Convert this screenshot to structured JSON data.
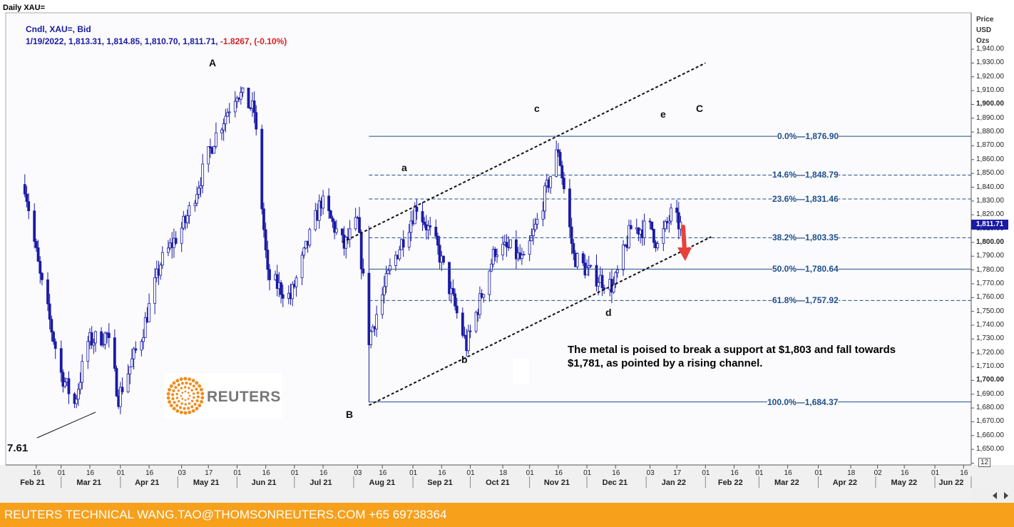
{
  "window": {
    "title": "Daily XAU="
  },
  "legend": {
    "line1": "Cndl, XAU=, Bid",
    "line2_main": "1/19/2022, 1,813.31, 1,814.85, 1,810.70, 1,811.71, ",
    "line2_change": "-1.8267, (-0.10%)"
  },
  "price_axis": {
    "header": [
      "Price",
      "USD",
      "Ozs"
    ],
    "current_price": "1,811.71",
    "corner_value": "12"
  },
  "left_edge_value": "7.61",
  "fib_levels": [
    {
      "label": "0.0%",
      "value": "1,876.90"
    },
    {
      "label": "14.6%",
      "value": "1,848.79"
    },
    {
      "label": "23.6%",
      "value": "1,831.46"
    },
    {
      "label": "38.2%",
      "value": "1,803.35"
    },
    {
      "label": "50.0%",
      "value": "1,780.64"
    },
    {
      "label": "61.8%",
      "value": "1,757.92"
    },
    {
      "label": "100.0%",
      "value": "1,684.37"
    }
  ],
  "waves": [
    "A",
    "B",
    "C",
    "a",
    "b",
    "c",
    "d",
    "e"
  ],
  "annotation": "The metal is poised to break a support at $1,803 and fall towards $1,781, as pointed by a rising channel.",
  "footer": {
    "text": "REUTERS TECHNICAL  WANG.TAO@THOMSONREUTERS.COM  +65 69738364"
  },
  "logo": {
    "text": "REUTERS"
  },
  "colors": {
    "candle": "#1a1aa6",
    "fib": "#1f4e8c",
    "footer": "#f6a01c",
    "arrow": "#e8403a"
  },
  "chart_data": {
    "type": "candlestick",
    "symbol": "XAU=",
    "ylim": [
      1640,
      1945
    ],
    "y_ticks": [
      1640,
      1650,
      1660,
      1670,
      1680,
      1690,
      1700,
      1710,
      1720,
      1730,
      1740,
      1750,
      1760,
      1770,
      1780,
      1790,
      1800,
      1810,
      1820,
      1830,
      1840,
      1850,
      1860,
      1870,
      1880,
      1890,
      1900,
      1910,
      1920,
      1930,
      1940
    ],
    "y_tick_labels": [
      "",
      "1,650.00",
      "1,660.00",
      "1,670.00",
      "1,680.00",
      "1,690.00",
      "1,700.00",
      "1,710.00",
      "1,720.00",
      "1,730.00",
      "1,740.00",
      "1,750.00",
      "1,760.00",
      "1,770.00",
      "1,780.00",
      "1,790.00",
      "1,800.00",
      "1,810.00",
      "1,820.00",
      "1,830.00",
      "1,840.00",
      "1,850.00",
      "1,860.00",
      "1,870.00",
      "1,880.00",
      "1,890.00",
      "1,900.00",
      "1,910.00",
      "1,920.00",
      "1,930.00",
      "1,940.00"
    ],
    "y_ticks_bold": [
      1700,
      1800,
      1900
    ],
    "x_ticks": [
      "16",
      "01",
      "16",
      "01",
      "16",
      "03",
      "17",
      "01",
      "16",
      "01",
      "16",
      "03",
      "16",
      "01",
      "16",
      "01",
      "18",
      "01",
      "16",
      "01",
      "16",
      "03",
      "17",
      "01",
      "16",
      "01",
      "16",
      "01",
      "18",
      "02",
      "16",
      "01",
      "16"
    ],
    "months": [
      "Feb 21",
      "Mar 21",
      "Apr 21",
      "May 21",
      "Jun 21",
      "Jul 21",
      "Aug 21",
      "Sep 21",
      "Oct 21",
      "Nov 21",
      "Dec 21",
      "Jan 22",
      "Feb 22",
      "Mar 22",
      "Apr 22",
      "May 22",
      "Jun 22"
    ],
    "ohlc_anchors": [
      [
        "2021-02-10",
        1842
      ],
      [
        "2021-02-18",
        1775
      ],
      [
        "2021-03-01",
        1705
      ],
      [
        "2021-03-08",
        1683
      ],
      [
        "2021-03-15",
        1728
      ],
      [
        "2021-03-25",
        1733
      ],
      [
        "2021-03-31",
        1688
      ],
      [
        "2021-04-12",
        1732
      ],
      [
        "2021-04-22",
        1785
      ],
      [
        "2021-05-05",
        1815
      ],
      [
        "2021-05-20",
        1875
      ],
      [
        "2021-06-01",
        1910
      ],
      [
        "2021-06-10",
        1895
      ],
      [
        "2021-06-17",
        1775
      ],
      [
        "2021-06-29",
        1760
      ],
      [
        "2021-07-15",
        1830
      ],
      [
        "2021-07-27",
        1797
      ],
      [
        "2021-08-03",
        1815
      ],
      [
        "2021-08-09",
        1730
      ],
      [
        "2021-08-20",
        1780
      ],
      [
        "2021-09-03",
        1827
      ],
      [
        "2021-09-14",
        1795
      ],
      [
        "2021-09-29",
        1725
      ],
      [
        "2021-10-14",
        1795
      ],
      [
        "2021-10-22",
        1795
      ],
      [
        "2021-10-29",
        1785
      ],
      [
        "2021-11-05",
        1815
      ],
      [
        "2021-11-16",
        1868
      ],
      [
        "2021-11-24",
        1790
      ],
      [
        "2021-12-03",
        1777
      ],
      [
        "2021-12-15",
        1768
      ],
      [
        "2021-12-24",
        1810
      ],
      [
        "2022-01-04",
        1810
      ],
      [
        "2022-01-07",
        1797
      ],
      [
        "2022-01-14",
        1820
      ],
      [
        "2022-01-19",
        1811.71
      ]
    ],
    "channel_upper": [
      [
        "2021-07-26",
        1800
      ],
      [
        "2022-02-01",
        1930
      ]
    ],
    "channel_lower": [
      [
        "2021-08-09",
        1682
      ],
      [
        "2022-02-04",
        1804
      ]
    ],
    "fib_range": {
      "from": "2021-08-09",
      "to": "2022-06-20"
    }
  }
}
